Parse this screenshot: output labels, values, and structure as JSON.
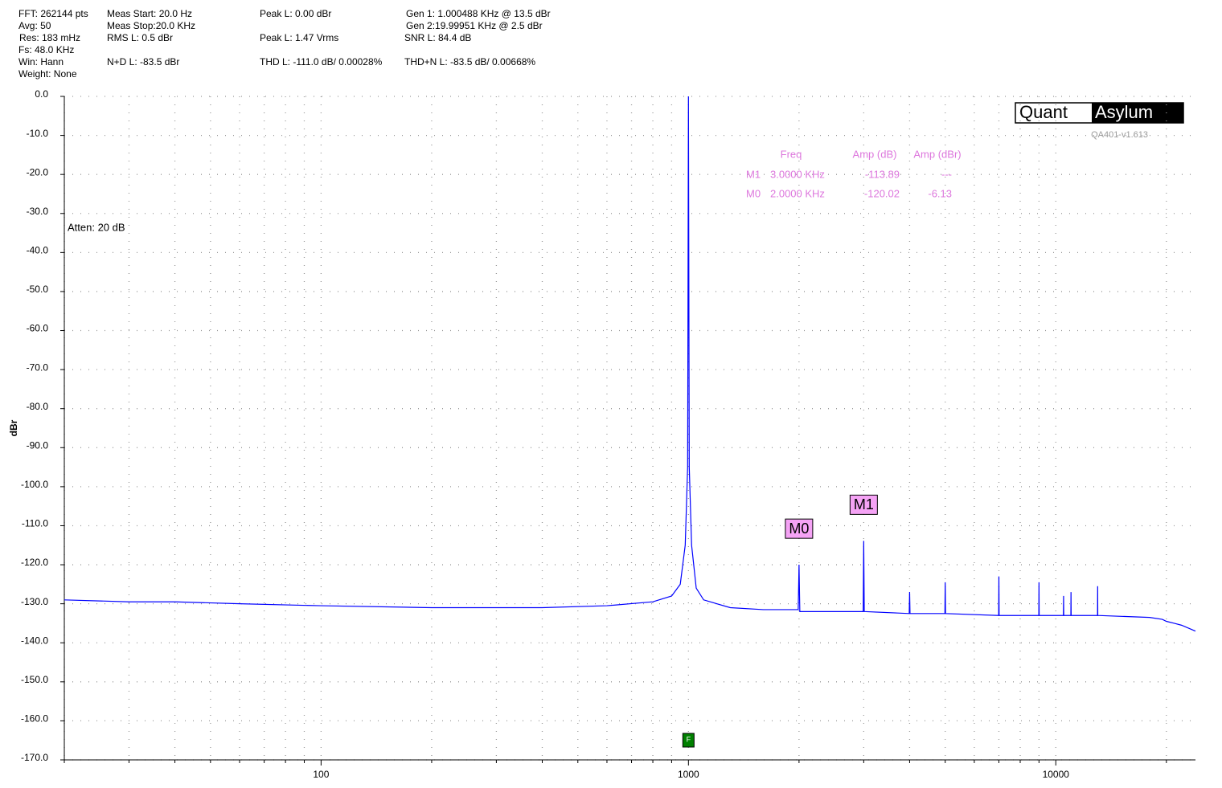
{
  "chart_data": {
    "type": "line",
    "info": [
      "FFT: 262144 pts",
      "Avg: 50",
      "Res: 183 mHz",
      "Fs: 48.0 KHz",
      "Win: Hann",
      "Weight: None",
      "Meas Start: 20.0 Hz",
      "Meas Stop:20.0 KHz",
      "RMS L: 0.5 dBr",
      "N+D L: -83.5 dBr",
      "Peak L: 0.00 dBr",
      "Peak L: 1.47 Vrms",
      "THD L: -111.0 dB/ 0.00028%",
      "Gen 1: 1.000488 KHz @ 13.5  dBr",
      "Gen 2:19.99951 KHz @ 2.5  dBr",
      "SNR L: 84.4 dB",
      "THD+N L: -83.5 dB/ 0.00668%"
    ],
    "ylabel": "dBr",
    "logo": [
      "Quant",
      "Asylum"
    ],
    "version": "QA401-v1.613",
    "atten": "Atten: 20 dB",
    "log_x": true,
    "grid": true,
    "xlim": [
      20,
      24000
    ],
    "ylim": [
      -170,
      0
    ],
    "xticks": [
      100,
      1000,
      10000
    ],
    "xminorticks": [
      20,
      30,
      40,
      50,
      60,
      70,
      80,
      90,
      200,
      300,
      400,
      500,
      600,
      700,
      800,
      900,
      2000,
      3000,
      4000,
      5000,
      6000,
      7000,
      8000,
      9000,
      20000
    ],
    "yticks": [
      {
        "value": 0,
        "label": "0.0"
      },
      {
        "value": -10,
        "label": "-10.0"
      },
      {
        "value": -20,
        "label": "-20.0"
      },
      {
        "value": -30,
        "label": "-30.0"
      },
      {
        "value": -40,
        "label": "-40.0"
      },
      {
        "value": -50,
        "label": "-50.0"
      },
      {
        "value": -60,
        "label": "-60.0"
      },
      {
        "value": -70,
        "label": "-70.0"
      },
      {
        "value": -80,
        "label": "-80.0"
      },
      {
        "value": -90,
        "label": "-90.0"
      },
      {
        "value": -100,
        "label": "-100.0"
      },
      {
        "value": -110,
        "label": "-110.0"
      },
      {
        "value": -120,
        "label": "-120.0"
      },
      {
        "value": -130,
        "label": "-130.0"
      },
      {
        "value": -140,
        "label": "-140.0"
      },
      {
        "value": -150,
        "label": "-150.0"
      },
      {
        "value": -160,
        "label": "-160.0"
      },
      {
        "value": -170,
        "label": "-170.0"
      }
    ],
    "series": [
      {
        "color": "#0000ff",
        "x": [
          20,
          30,
          40,
          60,
          100,
          200,
          400,
          600,
          800,
          900,
          950,
          980,
          995,
          1000,
          1005,
          1020,
          1050,
          1100,
          1300,
          1600,
          1990,
          2000,
          2010,
          2990,
          3000,
          3010,
          3990,
          4000,
          4010,
          4990,
          5000,
          5010,
          6990,
          7000,
          7010,
          8990,
          9000,
          9010,
          10490,
          10500,
          10510,
          10990,
          11000,
          11010,
          12990,
          13000,
          13010,
          18000,
          19500,
          20000,
          21000,
          22000,
          24000
        ],
        "values": [
          -129,
          -129.5,
          -129.5,
          -130,
          -130.5,
          -131,
          -131,
          -130.5,
          -129.5,
          -128,
          -125,
          -115,
          -95,
          0,
          -95,
          -115,
          -126,
          -129,
          -131,
          -131.5,
          -131.5,
          -120,
          -132,
          -132,
          -113.9,
          -132,
          -132.5,
          -127,
          -132.5,
          -132.5,
          -124.5,
          -132.5,
          -133,
          -123,
          -133,
          -133,
          -124.5,
          -133,
          -133,
          -128,
          -133,
          -133,
          -127,
          -133,
          -133,
          -125.5,
          -133,
          -133.5,
          -134,
          -134.5,
          -135,
          -135.5,
          -137
        ]
      }
    ],
    "marker_table": {
      "header": [
        "Freq",
        "Amp (dB)",
        "Amp (dBr)"
      ],
      "rows": [
        [
          "M1",
          "3.0000 KHz",
          "-113.89",
          "---"
        ],
        [
          "M0",
          "2.0000 KHz",
          "-120.02",
          "-6.13"
        ]
      ]
    },
    "markers": [
      {
        "label": "M0",
        "x": 2000,
        "y": -120.02
      },
      {
        "label": "M1",
        "x": 3000,
        "y": -113.89
      }
    ],
    "fundamental_marker": {
      "label": "F",
      "x": 1000
    }
  }
}
